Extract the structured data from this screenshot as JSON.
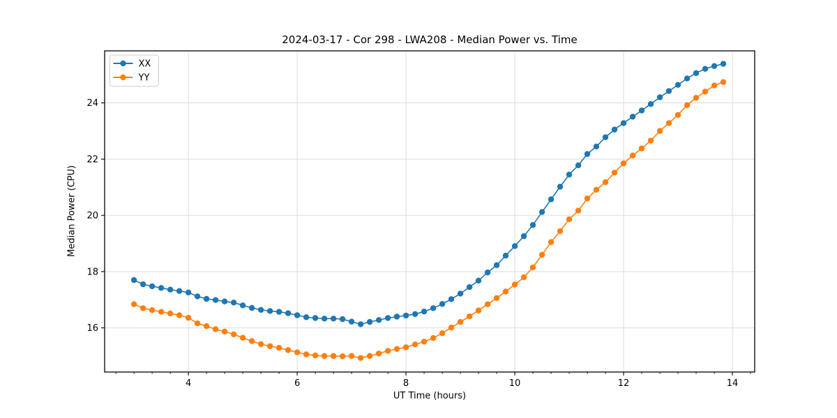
{
  "figure_title": "2024-03-17 - Cor 298 - LWA208 - Median Power vs. Time",
  "chart_data": {
    "type": "line",
    "title": "2024-03-17 - Cor 298 - LWA208 - Median Power vs. Time",
    "xlabel": "UT Time (hours)",
    "ylabel": "Median Power (CPU)",
    "xlim": [
      2.46,
      14.41
    ],
    "ylim": [
      14.43,
      25.85
    ],
    "xticks": [
      4,
      6,
      8,
      10,
      12,
      14
    ],
    "yticks": [
      16,
      18,
      20,
      22,
      24
    ],
    "x_minor_step": 0.333333,
    "grid": true,
    "grid_color": "#dcdcdc",
    "legend_position": "upper-left",
    "x": [
      3.0,
      3.167,
      3.333,
      3.5,
      3.667,
      3.833,
      4.0,
      4.167,
      4.333,
      4.5,
      4.667,
      4.833,
      5.0,
      5.167,
      5.333,
      5.5,
      5.667,
      5.833,
      6.0,
      6.167,
      6.333,
      6.5,
      6.667,
      6.833,
      7.0,
      7.167,
      7.333,
      7.5,
      7.667,
      7.833,
      8.0,
      8.167,
      8.333,
      8.5,
      8.667,
      8.833,
      9.0,
      9.167,
      9.333,
      9.5,
      9.667,
      9.833,
      10.0,
      10.167,
      10.333,
      10.5,
      10.667,
      10.833,
      11.0,
      11.167,
      11.333,
      11.5,
      11.667,
      11.833,
      12.0,
      12.167,
      12.333,
      12.5,
      12.667,
      12.833,
      13.0,
      13.167,
      13.333,
      13.5,
      13.667,
      13.833
    ],
    "series": [
      {
        "name": "XX",
        "color": "#1f77b4",
        "marker": "circle",
        "values": [
          17.7,
          17.55,
          17.48,
          17.42,
          17.36,
          17.31,
          17.26,
          17.12,
          17.03,
          16.99,
          16.94,
          16.9,
          16.8,
          16.71,
          16.64,
          16.6,
          16.57,
          16.52,
          16.45,
          16.38,
          16.35,
          16.33,
          16.33,
          16.31,
          16.22,
          16.13,
          16.21,
          16.28,
          16.35,
          16.4,
          16.44,
          16.49,
          16.58,
          16.7,
          16.85,
          17.02,
          17.22,
          17.45,
          17.68,
          17.97,
          18.23,
          18.57,
          18.91,
          19.26,
          19.66,
          20.12,
          20.57,
          21.02,
          21.45,
          21.78,
          22.18,
          22.45,
          22.78,
          23.05,
          23.28,
          23.51,
          23.73,
          23.96,
          24.2,
          24.42,
          24.64,
          24.87,
          25.06,
          25.21,
          25.31,
          25.39
        ]
      },
      {
        "name": "YY",
        "color": "#ff7f0e",
        "marker": "circle",
        "values": [
          16.84,
          16.7,
          16.63,
          16.57,
          16.51,
          16.45,
          16.36,
          16.16,
          16.06,
          15.95,
          15.87,
          15.77,
          15.65,
          15.53,
          15.42,
          15.35,
          15.29,
          15.21,
          15.13,
          15.06,
          15.02,
          15.0,
          15.0,
          14.99,
          15.0,
          14.93,
          15.0,
          15.09,
          15.18,
          15.25,
          15.31,
          15.41,
          15.51,
          15.64,
          15.81,
          16.01,
          16.21,
          16.41,
          16.62,
          16.84,
          17.06,
          17.29,
          17.54,
          17.8,
          18.15,
          18.6,
          19.05,
          19.44,
          19.86,
          20.17,
          20.6,
          20.91,
          21.18,
          21.52,
          21.85,
          22.13,
          22.38,
          22.66,
          23.0,
          23.28,
          23.57,
          23.92,
          24.18,
          24.4,
          24.62,
          24.74
        ]
      }
    ]
  }
}
